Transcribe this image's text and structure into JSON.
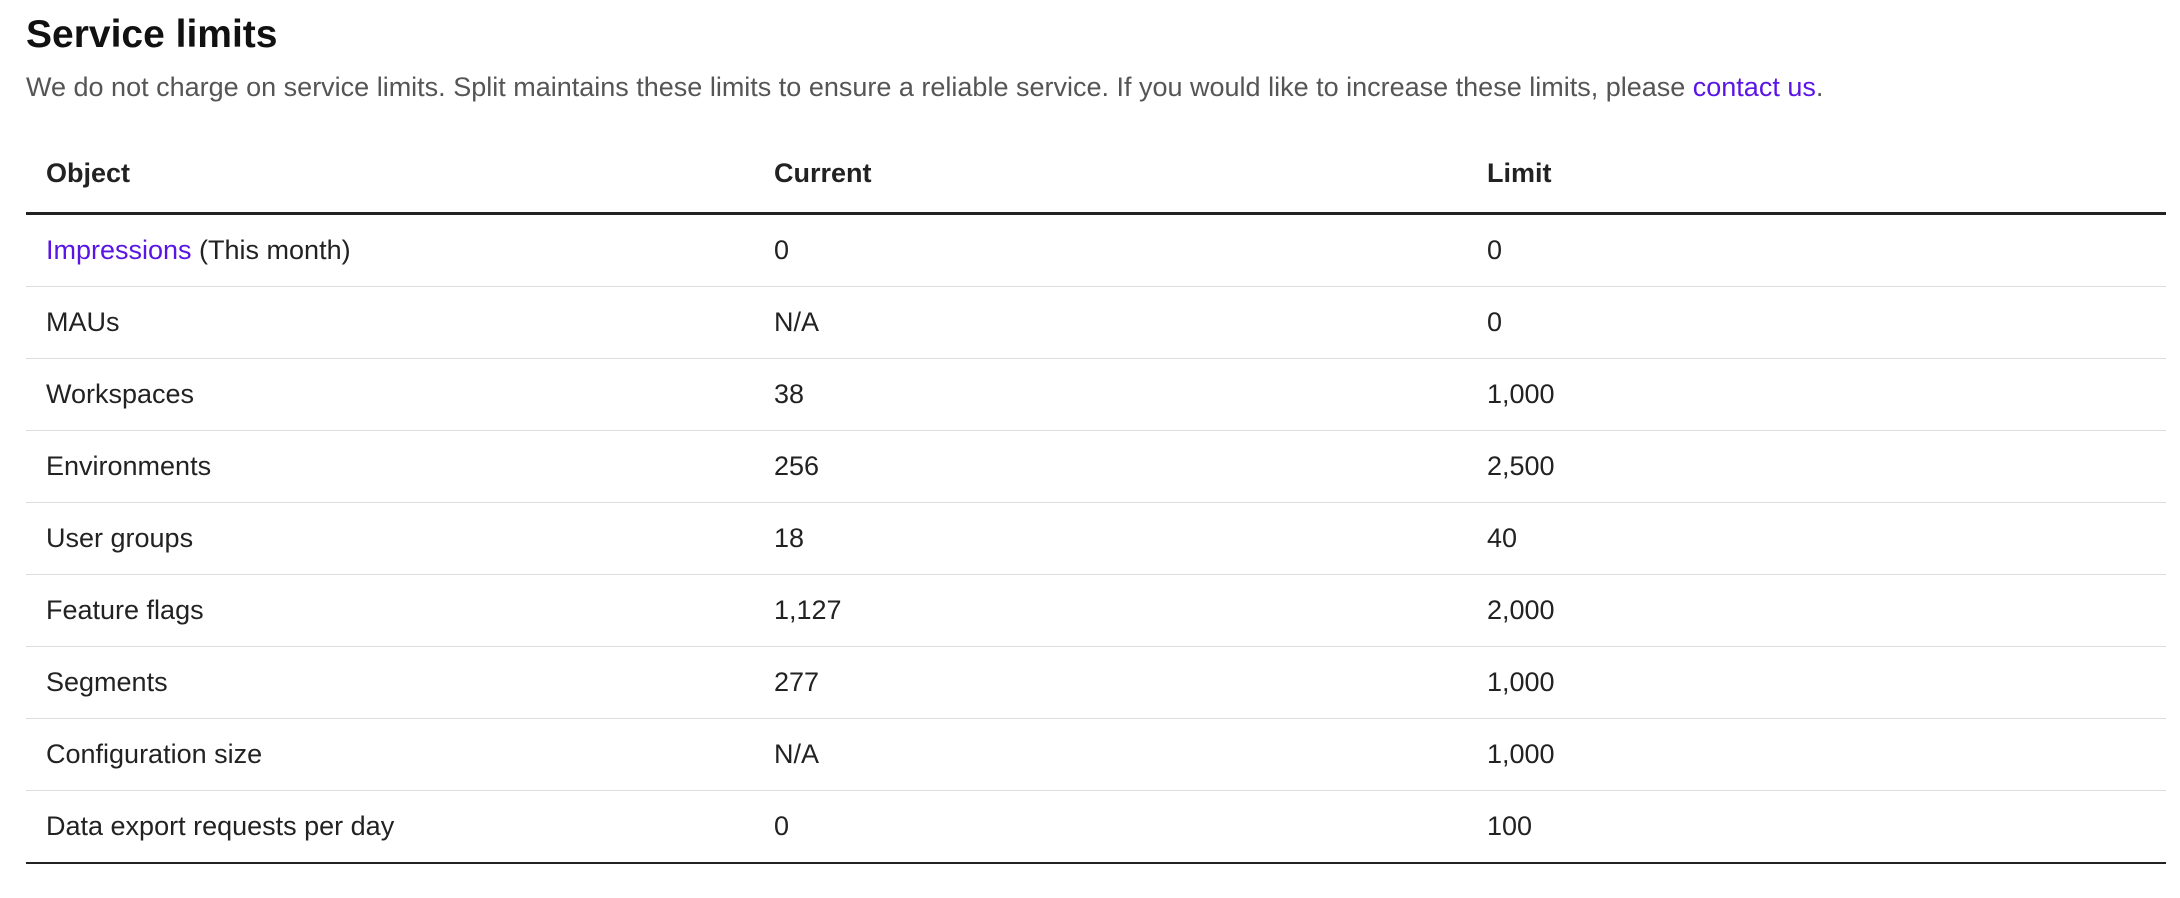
{
  "title": "Service limits",
  "description": {
    "text": "We do not charge on service limits. Split maintains these limits to ensure a reliable service. If you would like to increase these limits, please ",
    "link": "contact us",
    "end": "."
  },
  "table": {
    "headers": [
      "Object",
      "Current",
      "Limit"
    ],
    "rows": [
      {
        "object_link": "Impressions",
        "object": " (This month)",
        "current": "0",
        "limit": "0"
      },
      {
        "object": "MAUs",
        "current": "N/A",
        "limit": "0"
      },
      {
        "object": "Workspaces",
        "current": "38",
        "limit": "1,000"
      },
      {
        "object": "Environments",
        "current": "256",
        "limit": "2,500"
      },
      {
        "object": "User groups",
        "current": "18",
        "limit": "40"
      },
      {
        "object": "Feature flags",
        "current": "1,127",
        "limit": "2,000"
      },
      {
        "object": "Segments",
        "current": "277",
        "limit": "1,000"
      },
      {
        "object": "Configuration size",
        "current": "N/A",
        "limit": "1,000"
      },
      {
        "object": "Data export requests per day",
        "current": "0",
        "limit": "100"
      }
    ]
  },
  "colors": {
    "link": "#5b14e6"
  }
}
